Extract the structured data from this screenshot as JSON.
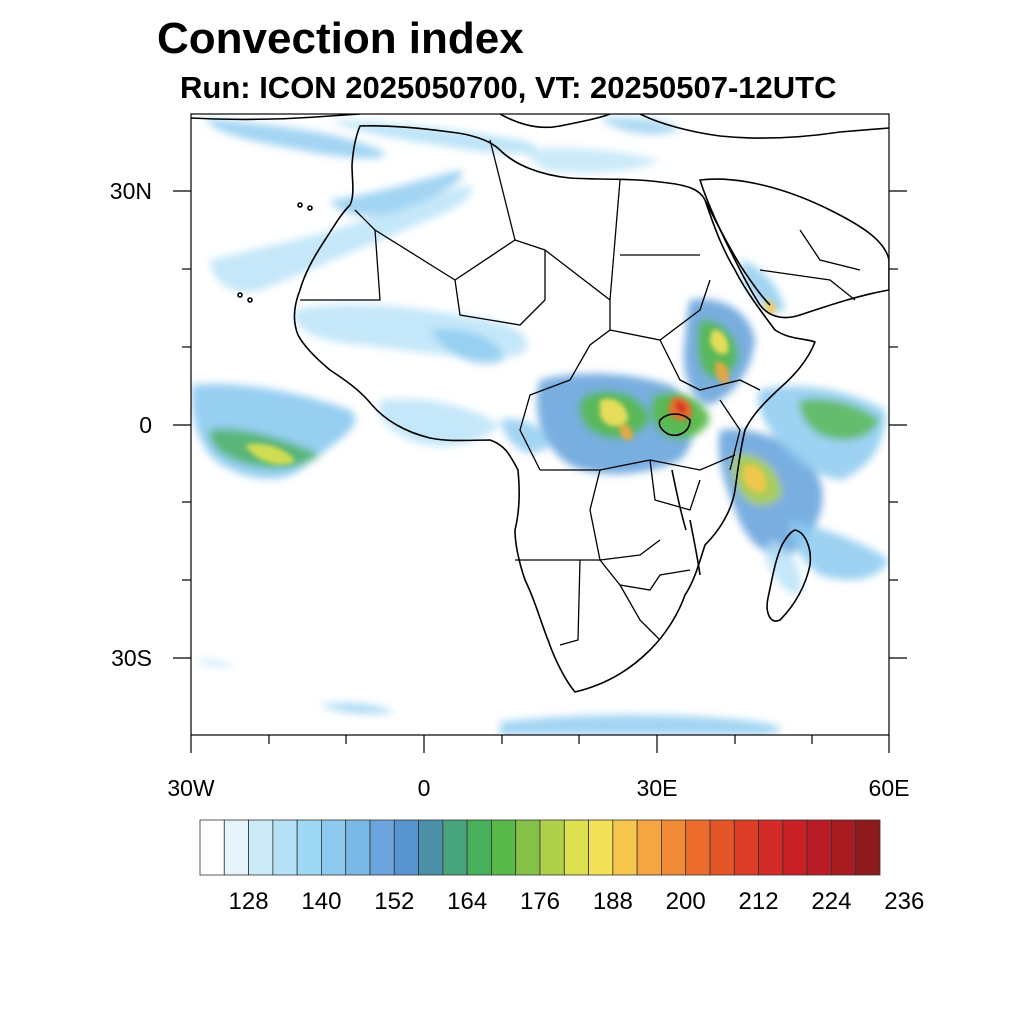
{
  "title": "Convection index",
  "subtitle": "Run: ICON 2025050700,  VT: 20250507-12UTC",
  "axes": {
    "lat_labels": [
      "30N",
      "0",
      "30S"
    ],
    "lon_labels": [
      "30W",
      "0",
      "30E",
      "60E"
    ]
  },
  "colorbar": {
    "labels": [
      "128",
      "140",
      "152",
      "164",
      "176",
      "188",
      "200",
      "212",
      "224",
      "236"
    ],
    "colors": [
      "#ffffff",
      "#e6f5fc",
      "#cdeaf9",
      "#b5e1f7",
      "#9fd8f5",
      "#8ccaf0",
      "#7ab8e6",
      "#6aa5dd",
      "#5894cf",
      "#4a90a8",
      "#47a47d",
      "#48b05a",
      "#58b94a",
      "#86c147",
      "#b0d049",
      "#dde14f",
      "#f4e15a",
      "#f6c74d",
      "#f5a640",
      "#f18a35",
      "#ec6d2d",
      "#e45528",
      "#dc3d27",
      "#d42a28",
      "#c92026",
      "#b91c24",
      "#a71b21",
      "#8f1a1c"
    ]
  },
  "map": {
    "region": "Africa and surrounding seas",
    "lon_range": [
      -30,
      60
    ],
    "lat_range": [
      -40,
      40
    ],
    "features": [
      "coastlines",
      "country borders",
      "convection index shading"
    ]
  }
}
